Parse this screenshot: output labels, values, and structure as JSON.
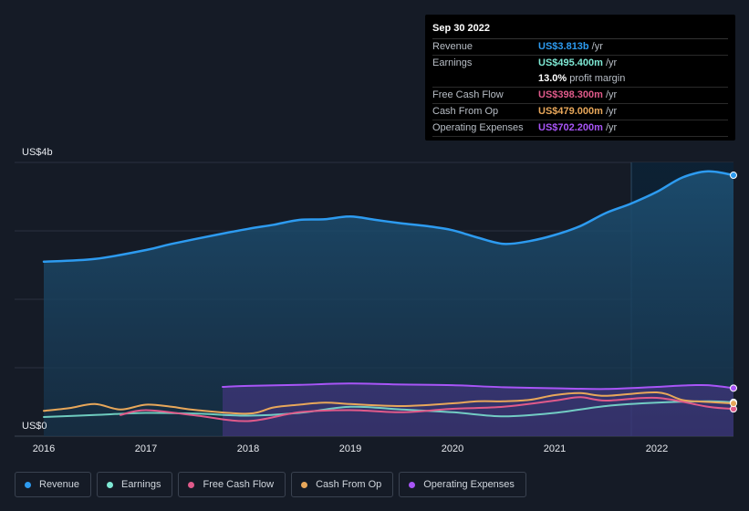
{
  "tooltip": {
    "date": "Sep 30 2022",
    "rows": [
      {
        "label": "Revenue",
        "value": "US$3.813b",
        "unit": "/yr",
        "color": "#2d9bf0"
      },
      {
        "label": "Earnings",
        "value": "US$495.400m",
        "unit": "/yr",
        "color": "#7ee8d4"
      },
      {
        "label": "",
        "value": "13.0%",
        "unit": "profit margin",
        "color": "#ffffff"
      },
      {
        "label": "Free Cash Flow",
        "value": "US$398.300m",
        "unit": "/yr",
        "color": "#e05a8a"
      },
      {
        "label": "Cash From Op",
        "value": "US$479.000m",
        "unit": "/yr",
        "color": "#e8a75a"
      },
      {
        "label": "Operating Expenses",
        "value": "US$702.200m",
        "unit": "/yr",
        "color": "#a855f7"
      }
    ]
  },
  "chart_data": {
    "type": "area",
    "ylabel_top": "US$4b",
    "ylabel_bottom": "US$0",
    "ylim": [
      0,
      4000
    ],
    "xlim": [
      2016.0,
      2022.75
    ],
    "x_ticks": [
      "2016",
      "2017",
      "2018",
      "2019",
      "2020",
      "2021",
      "2022"
    ],
    "x_tick_values": [
      2016,
      2017,
      2018,
      2019,
      2020,
      2021,
      2022
    ],
    "highlight_start": 2021.75,
    "series": [
      {
        "name": "Revenue",
        "color": "#2d9bf0",
        "fill": true,
        "x": [
          2016.0,
          2016.5,
          2017.0,
          2017.25,
          2017.75,
          2018.0,
          2018.25,
          2018.5,
          2018.75,
          2019.0,
          2019.25,
          2019.5,
          2019.75,
          2020.0,
          2020.25,
          2020.5,
          2020.75,
          2021.0,
          2021.25,
          2021.5,
          2021.75,
          2022.0,
          2022.25,
          2022.5,
          2022.75
        ],
        "y": [
          2550,
          2590,
          2720,
          2810,
          2960,
          3030,
          3090,
          3160,
          3170,
          3210,
          3160,
          3110,
          3070,
          3010,
          2900,
          2810,
          2850,
          2940,
          3070,
          3260,
          3400,
          3570,
          3780,
          3870,
          3813
        ]
      },
      {
        "name": "Operating Expenses",
        "color": "#a855f7",
        "fill": true,
        "x": [
          2017.75,
          2018.0,
          2018.5,
          2019.0,
          2019.5,
          2020.0,
          2020.5,
          2021.0,
          2021.5,
          2022.0,
          2022.25,
          2022.5,
          2022.75
        ],
        "y": [
          720,
          735,
          750,
          770,
          755,
          745,
          715,
          700,
          690,
          720,
          740,
          745,
          702
        ]
      },
      {
        "name": "Earnings",
        "color": "#7ee8d4",
        "fill": false,
        "x": [
          2016.0,
          2016.5,
          2017.0,
          2017.5,
          2018.0,
          2018.5,
          2019.0,
          2019.5,
          2020.0,
          2020.5,
          2021.0,
          2021.5,
          2022.0,
          2022.5,
          2022.75
        ],
        "y": [
          280,
          310,
          340,
          330,
          300,
          340,
          430,
          390,
          350,
          290,
          340,
          440,
          490,
          510,
          495
        ]
      },
      {
        "name": "Free Cash Flow",
        "color": "#e05a8a",
        "fill": false,
        "x": [
          2016.75,
          2017.0,
          2017.5,
          2018.0,
          2018.5,
          2019.0,
          2019.5,
          2020.0,
          2020.5,
          2021.0,
          2021.25,
          2021.5,
          2022.0,
          2022.5,
          2022.75
        ],
        "y": [
          310,
          380,
          300,
          220,
          350,
          380,
          350,
          400,
          430,
          520,
          570,
          520,
          560,
          430,
          398
        ]
      },
      {
        "name": "Cash From Op",
        "color": "#e8a75a",
        "fill": false,
        "x": [
          2016.0,
          2016.25,
          2016.5,
          2016.75,
          2017.0,
          2017.25,
          2017.5,
          2018.0,
          2018.25,
          2018.5,
          2018.75,
          2019.0,
          2019.5,
          2020.0,
          2020.25,
          2020.5,
          2020.75,
          2021.0,
          2021.25,
          2021.5,
          2022.0,
          2022.25,
          2022.5,
          2022.75
        ],
        "y": [
          370,
          410,
          470,
          390,
          460,
          430,
          380,
          330,
          420,
          460,
          490,
          470,
          440,
          480,
          510,
          510,
          530,
          600,
          630,
          590,
          640,
          530,
          500,
          479
        ]
      }
    ],
    "legend_placement": "bottom-left"
  },
  "legend": [
    {
      "label": "Revenue",
      "color": "#2d9bf0"
    },
    {
      "label": "Earnings",
      "color": "#7ee8d4"
    },
    {
      "label": "Free Cash Flow",
      "color": "#e05a8a"
    },
    {
      "label": "Cash From Op",
      "color": "#e8a75a"
    },
    {
      "label": "Operating Expenses",
      "color": "#a855f7"
    }
  ]
}
